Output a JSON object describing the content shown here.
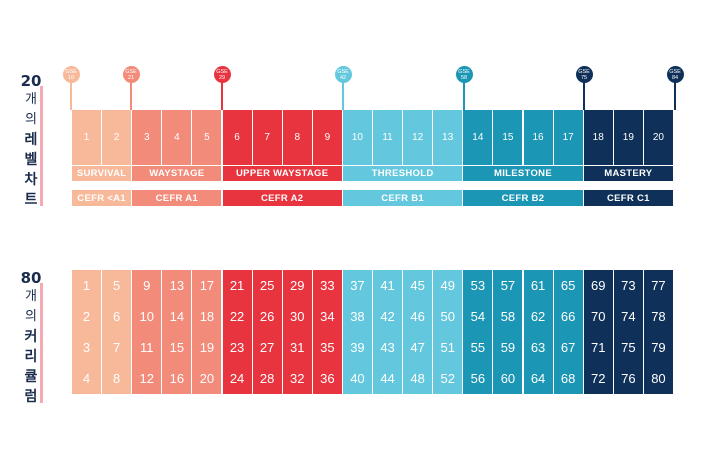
{
  "sidebar_top": {
    "num": "20",
    "w1": "개",
    "w2": "의",
    "b1": "레",
    "b2": "벨",
    "b3": "차",
    "b4": "트"
  },
  "sidebar_bottom": {
    "num": "80",
    "w1": "개",
    "w2": "의",
    "b1": "커",
    "b2": "리",
    "b3": "큘",
    "b4": "럼"
  },
  "levels": [
    "1",
    "2",
    "3",
    "4",
    "5",
    "6",
    "7",
    "8",
    "9",
    "10",
    "11",
    "12",
    "13",
    "14",
    "15",
    "16",
    "17",
    "18",
    "19",
    "20"
  ],
  "level_colors": [
    "#f8b99a",
    "#f8b99a",
    "#f28b7a",
    "#f28b7a",
    "#f28b7a",
    "#e8343f",
    "#e8343f",
    "#e8343f",
    "#e8343f",
    "#63c8de",
    "#63c8de",
    "#63c8de",
    "#63c8de",
    "#1b96b5",
    "#1b96b5",
    "#1b96b5",
    "#1b96b5",
    "#0f3059",
    "#0f3059",
    "#0f3059"
  ],
  "pins": [
    {
      "label_line1": "GSE",
      "label_line2": "10",
      "color": "#f8b99a"
    },
    {
      "label_line1": "GSE",
      "label_line2": "21",
      "color": "#f28b7a"
    },
    {
      "label_line1": "GSE",
      "label_line2": "29",
      "color": "#e8343f"
    },
    {
      "label_line1": "GSE",
      "label_line2": "42",
      "color": "#63c8de"
    },
    {
      "label_line1": "GSE",
      "label_line2": "58",
      "color": "#1b96b5"
    },
    {
      "label_line1": "GSE",
      "label_line2": "75",
      "color": "#0f3059"
    },
    {
      "label_line1": "GSE",
      "label_line2": "84",
      "color": "#0f3059"
    }
  ],
  "stages": [
    {
      "label": "SURVIVAL",
      "color": "#f8b99a"
    },
    {
      "label": "WAYSTAGE",
      "color": "#f28b7a"
    },
    {
      "label": "UPPER WAYSTAGE",
      "color": "#e8343f"
    },
    {
      "label": "THRESHOLD",
      "color": "#63c8de"
    },
    {
      "label": "MILESTONE",
      "color": "#1b96b5"
    },
    {
      "label": "MASTERY",
      "color": "#0f3059"
    }
  ],
  "cefr": [
    {
      "label": "CEFR <A1",
      "color": "#f8b99a"
    },
    {
      "label": "CEFR A1",
      "color": "#f28b7a"
    },
    {
      "label": "CEFR A2",
      "color": "#e8343f"
    },
    {
      "label": "CEFR B1",
      "color": "#63c8de"
    },
    {
      "label": "CEFR B2",
      "color": "#1b96b5"
    },
    {
      "label": "CEFR C1",
      "color": "#0f3059"
    }
  ],
  "curriculum_columns": [
    [
      "1",
      "2",
      "3",
      "4"
    ],
    [
      "5",
      "6",
      "7",
      "8"
    ],
    [
      "9",
      "10",
      "11",
      "12"
    ],
    [
      "13",
      "14",
      "15",
      "16"
    ],
    [
      "17",
      "18",
      "19",
      "20"
    ],
    [
      "21",
      "22",
      "23",
      "24"
    ],
    [
      "25",
      "26",
      "27",
      "28"
    ],
    [
      "29",
      "30",
      "31",
      "32"
    ],
    [
      "33",
      "34",
      "35",
      "36"
    ],
    [
      "37",
      "38",
      "39",
      "40"
    ],
    [
      "41",
      "42",
      "43",
      "44"
    ],
    [
      "45",
      "46",
      "47",
      "48"
    ],
    [
      "49",
      "50",
      "51",
      "52"
    ],
    [
      "53",
      "54",
      "55",
      "56"
    ],
    [
      "57",
      "58",
      "59",
      "60"
    ],
    [
      "61",
      "62",
      "63",
      "64"
    ],
    [
      "65",
      "66",
      "67",
      "68"
    ],
    [
      "69",
      "70",
      "71",
      "72"
    ],
    [
      "73",
      "74",
      "75",
      "76"
    ],
    [
      "77",
      "78",
      "79",
      "80"
    ]
  ]
}
